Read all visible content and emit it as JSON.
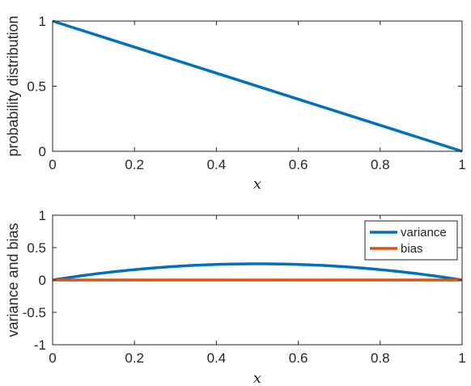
{
  "colors": {
    "series_blue": "#0072BD",
    "series_orange": "#D95319",
    "axis": "#262626"
  },
  "chart_data": [
    {
      "type": "line",
      "title": "",
      "xlabel": "x",
      "ylabel": "probability distribution",
      "xlim": [
        0,
        1
      ],
      "ylim": [
        0,
        1
      ],
      "xticks": [
        0,
        0.2,
        0.4,
        0.6,
        0.8,
        1
      ],
      "xtick_labels": [
        "0",
        "0.2",
        "0.4",
        "0.6",
        "0.8",
        "1"
      ],
      "yticks": [
        0,
        0.5,
        1
      ],
      "ytick_labels": [
        "0",
        "0.5",
        "1"
      ],
      "grid": false,
      "legend": null,
      "series": [
        {
          "color": "#0072BD",
          "x": [
            0,
            1
          ],
          "y": [
            1,
            0
          ]
        }
      ]
    },
    {
      "type": "line",
      "title": "",
      "xlabel": "x",
      "ylabel": "variance and bias",
      "xlim": [
        0,
        1
      ],
      "ylim": [
        -1,
        1
      ],
      "xticks": [
        0,
        0.2,
        0.4,
        0.6,
        0.8,
        1
      ],
      "xtick_labels": [
        "0",
        "0.2",
        "0.4",
        "0.6",
        "0.8",
        "1"
      ],
      "yticks": [
        -1,
        -0.5,
        0,
        0.5,
        1
      ],
      "ytick_labels": [
        "-1",
        "-0.5",
        "0",
        "0.5",
        "1"
      ],
      "grid": false,
      "legend": "top-right",
      "series": [
        {
          "name": "variance",
          "color": "#0072BD",
          "x": [
            0,
            0.1,
            0.2,
            0.3,
            0.4,
            0.5,
            0.6,
            0.7,
            0.8,
            0.9,
            1
          ],
          "y": [
            0,
            0.09,
            0.16,
            0.21,
            0.24,
            0.25,
            0.24,
            0.21,
            0.16,
            0.09,
            0
          ]
        },
        {
          "name": "bias",
          "color": "#D95319",
          "x": [
            0,
            1
          ],
          "y": [
            0,
            0
          ]
        }
      ]
    }
  ]
}
